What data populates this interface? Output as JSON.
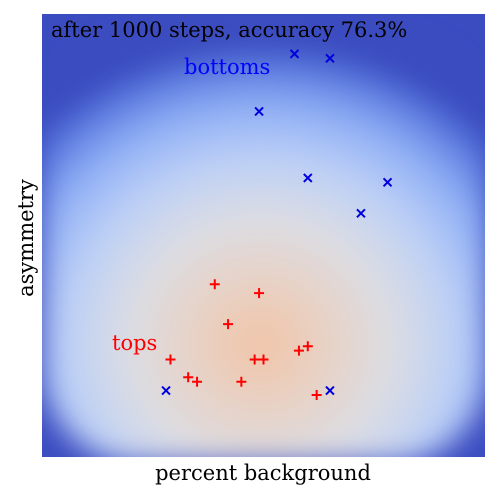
{
  "chart_data": {
    "type": "scatter",
    "title": "after 1000 steps, accuracy 76.3%",
    "xlabel": "percent background",
    "ylabel": "asymmetry",
    "xlim": [
      0,
      1
    ],
    "ylim": [
      0,
      1
    ],
    "grid": false,
    "legend": "none",
    "background": "probability heatmap from blue (edges) through white to light orange (lower center)",
    "annotations": [
      {
        "text": "bottoms",
        "x": 0.32,
        "y": 0.88,
        "color": "#0000ff"
      },
      {
        "text": "tops",
        "x": 0.16,
        "y": 0.25,
        "color": "#ff0000"
      }
    ],
    "series": [
      {
        "marker": "x",
        "color": "#0000dd",
        "points": [
          {
            "x": 0.57,
            "y": 0.91
          },
          {
            "x": 0.65,
            "y": 0.9
          },
          {
            "x": 0.49,
            "y": 0.78
          },
          {
            "x": 0.6,
            "y": 0.63
          },
          {
            "x": 0.78,
            "y": 0.62
          },
          {
            "x": 0.72,
            "y": 0.55
          },
          {
            "x": 0.28,
            "y": 0.15
          },
          {
            "x": 0.65,
            "y": 0.15
          }
        ]
      },
      {
        "marker": "+",
        "color": "#ff0000",
        "points": [
          {
            "x": 0.39,
            "y": 0.39
          },
          {
            "x": 0.49,
            "y": 0.37
          },
          {
            "x": 0.42,
            "y": 0.3
          },
          {
            "x": 0.29,
            "y": 0.22
          },
          {
            "x": 0.48,
            "y": 0.22
          },
          {
            "x": 0.5,
            "y": 0.22
          },
          {
            "x": 0.58,
            "y": 0.24
          },
          {
            "x": 0.6,
            "y": 0.25
          },
          {
            "x": 0.33,
            "y": 0.18
          },
          {
            "x": 0.35,
            "y": 0.17
          },
          {
            "x": 0.45,
            "y": 0.17
          },
          {
            "x": 0.62,
            "y": 0.14
          }
        ]
      }
    ]
  }
}
